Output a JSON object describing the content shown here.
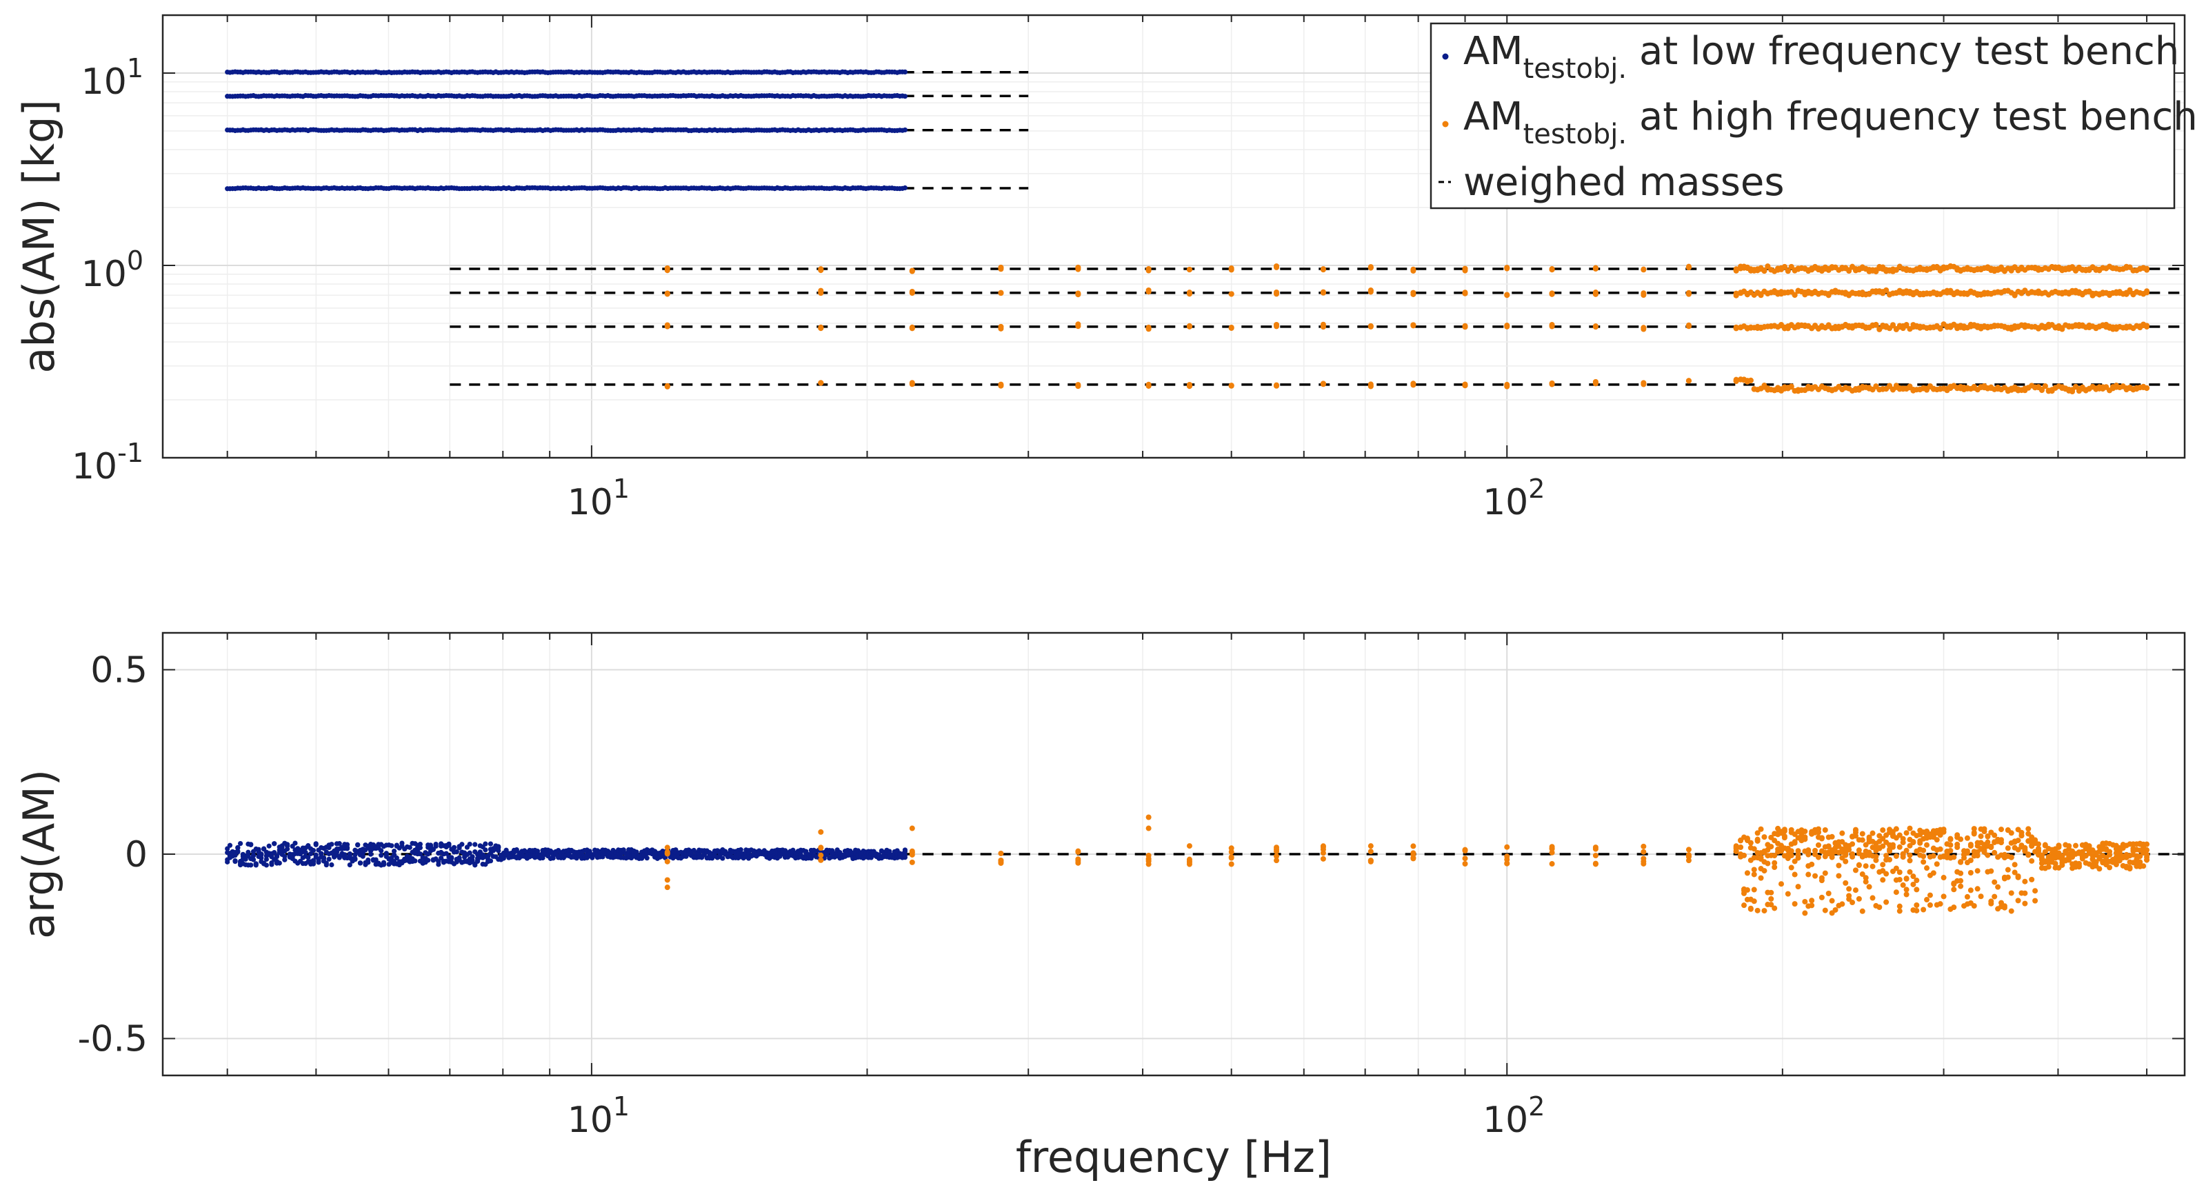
{
  "chart_data": [
    {
      "type": "scatter",
      "panel": "magnitude",
      "ylabel": "abs(AM) [kg]",
      "xlabel": "",
      "xscale": "log",
      "yscale": "log",
      "xlim": [
        3.4,
        550
      ],
      "ylim": [
        0.1,
        20
      ],
      "grid": true,
      "xticks": [
        {
          "value": 10,
          "base": "10",
          "exp": "1"
        },
        {
          "value": 100,
          "base": "10",
          "exp": "2"
        }
      ],
      "yticks": [
        {
          "value": 0.1,
          "base": "10",
          "exp": "-1"
        },
        {
          "value": 1,
          "base": "10",
          "exp": "0"
        },
        {
          "value": 10,
          "base": "10",
          "exp": "1"
        }
      ],
      "legend": {
        "location": "top-right",
        "entries": [
          {
            "main": "AM",
            "sub": "testobj.",
            "rest": " at low frequency test bench",
            "series": "low"
          },
          {
            "main": "AM",
            "sub": "testobj.",
            "rest": " at high frequency test bench",
            "series": "high"
          },
          {
            "main": "weighed masses",
            "sub": "",
            "rest": "",
            "series": "ref"
          }
        ]
      },
      "series": [
        {
          "name": "AM_testobj. at low frequency test bench",
          "color": "#0a1d8a",
          "f_range": [
            4,
            22
          ],
          "levels": [
            10.1,
            7.6,
            5.05,
            2.52
          ]
        },
        {
          "name": "AM_testobj. at high frequency test bench",
          "color": "#f0800a",
          "f_range": [
            12,
            500
          ],
          "levels": [
            0.96,
            0.72,
            0.48,
            0.24
          ]
        },
        {
          "name": "weighed masses",
          "color": "#000000",
          "style": "dashed",
          "lines": [
            {
              "value": 10.1,
              "f_range": [
                4,
                30
              ]
            },
            {
              "value": 7.6,
              "f_range": [
                4,
                30
              ]
            },
            {
              "value": 5.05,
              "f_range": [
                4,
                30
              ]
            },
            {
              "value": 2.52,
              "f_range": [
                4,
                30
              ]
            },
            {
              "value": 0.96,
              "f_range": [
                7,
                550
              ]
            },
            {
              "value": 0.72,
              "f_range": [
                7,
                550
              ]
            },
            {
              "value": 0.48,
              "f_range": [
                7,
                550
              ]
            },
            {
              "value": 0.24,
              "f_range": [
                7,
                550
              ]
            }
          ]
        }
      ]
    },
    {
      "type": "scatter",
      "panel": "phase",
      "ylabel": "arg(AM)",
      "xlabel": "frequency [Hz]",
      "xscale": "log",
      "yscale": "linear",
      "xlim": [
        3.4,
        550
      ],
      "ylim": [
        -0.6,
        0.6
      ],
      "grid": true,
      "xticks": [
        {
          "value": 10,
          "base": "10",
          "exp": "1"
        },
        {
          "value": 100,
          "base": "10",
          "exp": "2"
        }
      ],
      "yticks": [
        {
          "value": 0.5,
          "label": "0.5"
        },
        {
          "value": 0,
          "label": "0"
        },
        {
          "value": -0.5,
          "label": "-0.5"
        }
      ],
      "series": [
        {
          "name": "AM_testobj. at low frequency test bench",
          "color": "#0a1d8a",
          "f_range": [
            4,
            22
          ],
          "spread": 0.02
        },
        {
          "name": "AM_testobj. at high frequency test bench",
          "color": "#f0800a",
          "f_range": [
            12,
            500
          ],
          "spread_range": [
            -0.17,
            0.09
          ]
        },
        {
          "name": "weighed masses",
          "color": "#000000",
          "style": "dashed",
          "value": 0,
          "f_range": [
            4,
            550
          ]
        }
      ]
    }
  ]
}
